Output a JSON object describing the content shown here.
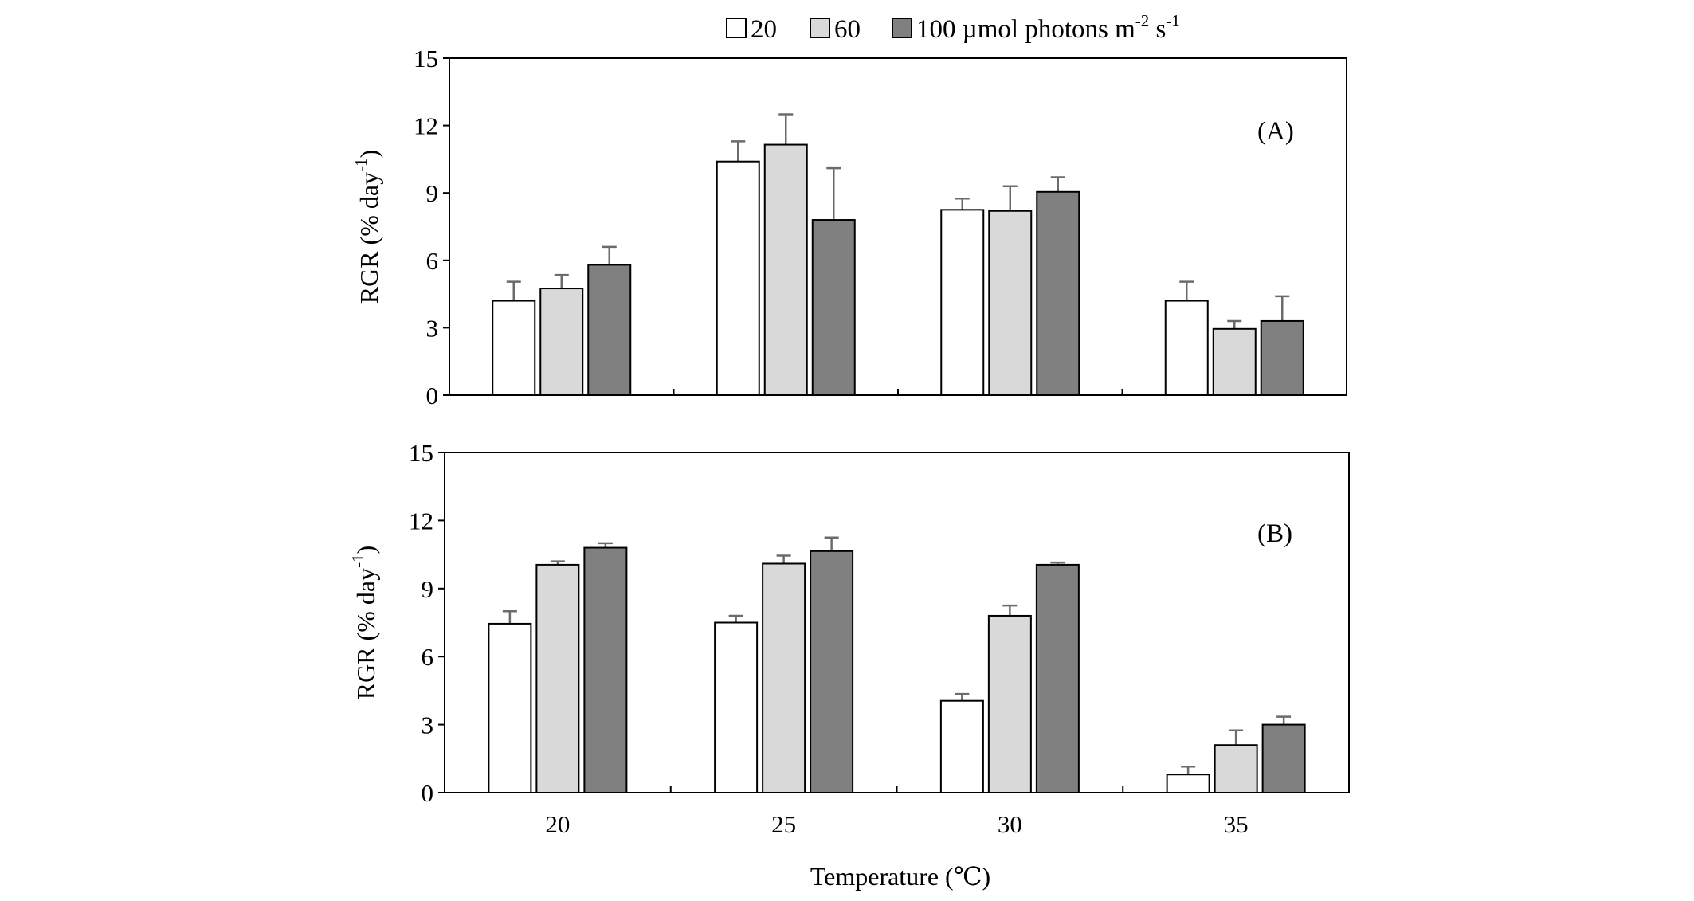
{
  "legend": {
    "entries": [
      {
        "label": "20",
        "color": "#ffffff"
      },
      {
        "label": "60",
        "color": "#d9d9d9"
      },
      {
        "label": "100 µmol photons m",
        "color": "#808080",
        "sup1": "-2",
        "mid": " s",
        "sup2": "-1"
      }
    ]
  },
  "chart_data": [
    {
      "type": "bar",
      "panel_label": "(A)",
      "categories": [
        "20",
        "25",
        "30",
        "35"
      ],
      "ylabel": {
        "main": "RGR (% day",
        "sup": "-1",
        "close": ")"
      },
      "ylim": [
        0,
        15
      ],
      "yticks": [
        "0",
        "3",
        "6",
        "9",
        "12",
        "15"
      ],
      "show_x_tick_labels": false,
      "series": [
        {
          "name": "20",
          "color": "#ffffff",
          "values": [
            4.2,
            10.4,
            8.25,
            4.2
          ],
          "errors": [
            0.85,
            0.9,
            0.5,
            0.85
          ]
        },
        {
          "name": "60",
          "color": "#d9d9d9",
          "values": [
            4.75,
            11.15,
            8.2,
            2.95
          ],
          "errors": [
            0.6,
            1.35,
            1.1,
            0.35
          ]
        },
        {
          "name": "100",
          "color": "#808080",
          "values": [
            5.8,
            7.8,
            9.05,
            3.3
          ],
          "errors": [
            0.8,
            2.3,
            0.65,
            1.1
          ]
        }
      ]
    },
    {
      "type": "bar",
      "panel_label": "(B)",
      "categories": [
        "20",
        "25",
        "30",
        "35"
      ],
      "ylabel": {
        "main": "RGR (% day",
        "sup": "-1",
        "close": ")"
      },
      "ylim": [
        0,
        15
      ],
      "yticks": [
        "0",
        "3",
        "6",
        "9",
        "12",
        "15"
      ],
      "show_x_tick_labels": true,
      "xlabel": "Temperature (℃)",
      "series": [
        {
          "name": "20",
          "color": "#ffffff",
          "values": [
            7.45,
            7.5,
            4.05,
            0.8
          ],
          "errors": [
            0.55,
            0.3,
            0.3,
            0.35
          ]
        },
        {
          "name": "60",
          "color": "#d9d9d9",
          "values": [
            10.05,
            10.1,
            7.8,
            2.1
          ],
          "errors": [
            0.15,
            0.35,
            0.45,
            0.65
          ]
        },
        {
          "name": "100",
          "color": "#808080",
          "values": [
            10.8,
            10.65,
            10.05,
            3.0
          ],
          "errors": [
            0.2,
            0.6,
            0.1,
            0.35
          ]
        }
      ]
    }
  ]
}
